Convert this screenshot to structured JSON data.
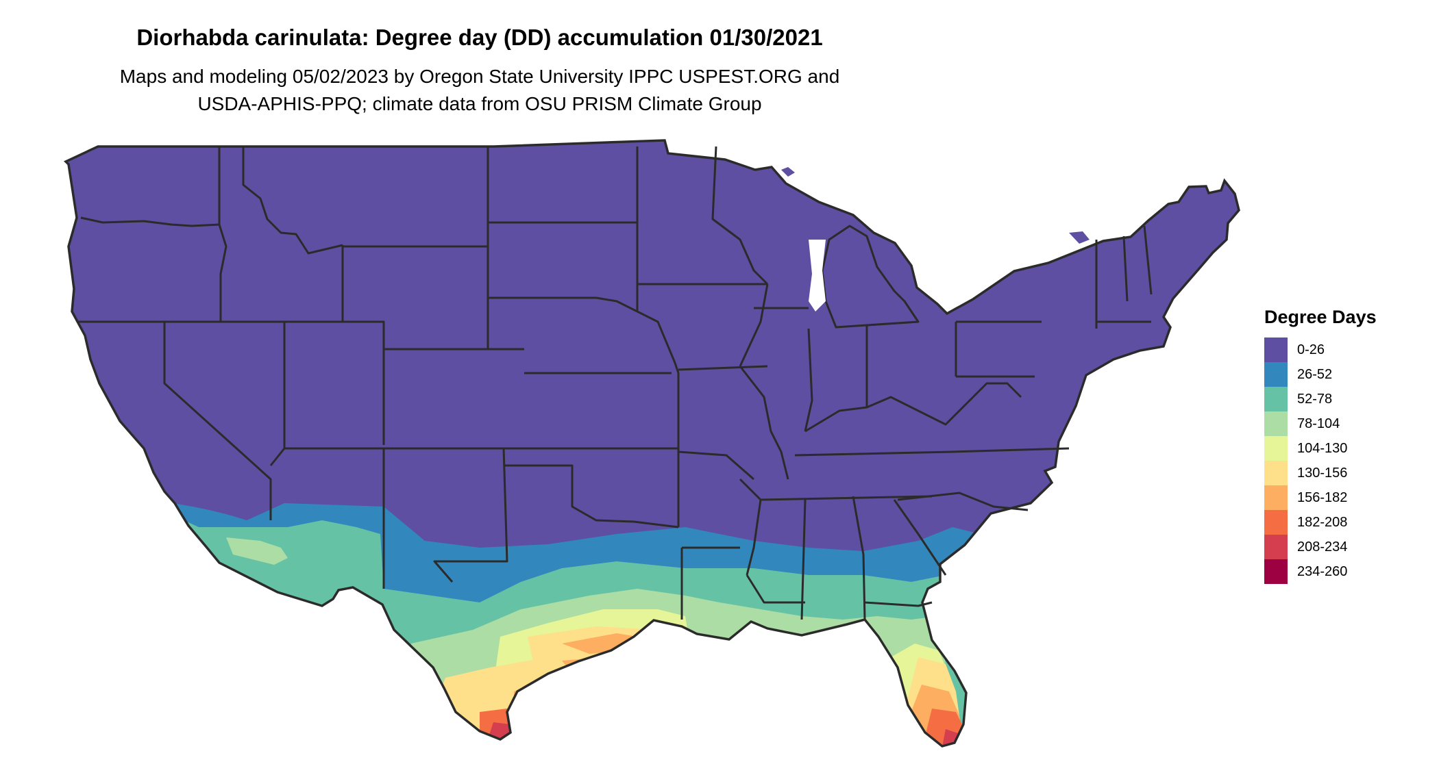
{
  "title": "Diorhabda carinulata: Degree day (DD) accumulation 01/30/2021",
  "subtitle": [
    "Maps and modeling 05/02/2023 by Oregon State University IPPC USPEST.ORG and",
    "USDA-APHIS-PPQ; climate data from OSU PRISM Climate Group"
  ],
  "legend": {
    "title": "Degree Days",
    "items": [
      {
        "label": "0-26",
        "color": "#5E4FA2"
      },
      {
        "label": "26-52",
        "color": "#3288BD"
      },
      {
        "label": "52-78",
        "color": "#66C2A5"
      },
      {
        "label": "78-104",
        "color": "#ABDDA4"
      },
      {
        "label": "104-130",
        "color": "#E6F598"
      },
      {
        "label": "130-156",
        "color": "#FEE08B"
      },
      {
        "label": "156-182",
        "color": "#FDAE61"
      },
      {
        "label": "182-208",
        "color": "#F46D43"
      },
      {
        "label": "208-234",
        "color": "#D53E4F"
      },
      {
        "label": "234-260",
        "color": "#9E0142"
      }
    ]
  }
}
